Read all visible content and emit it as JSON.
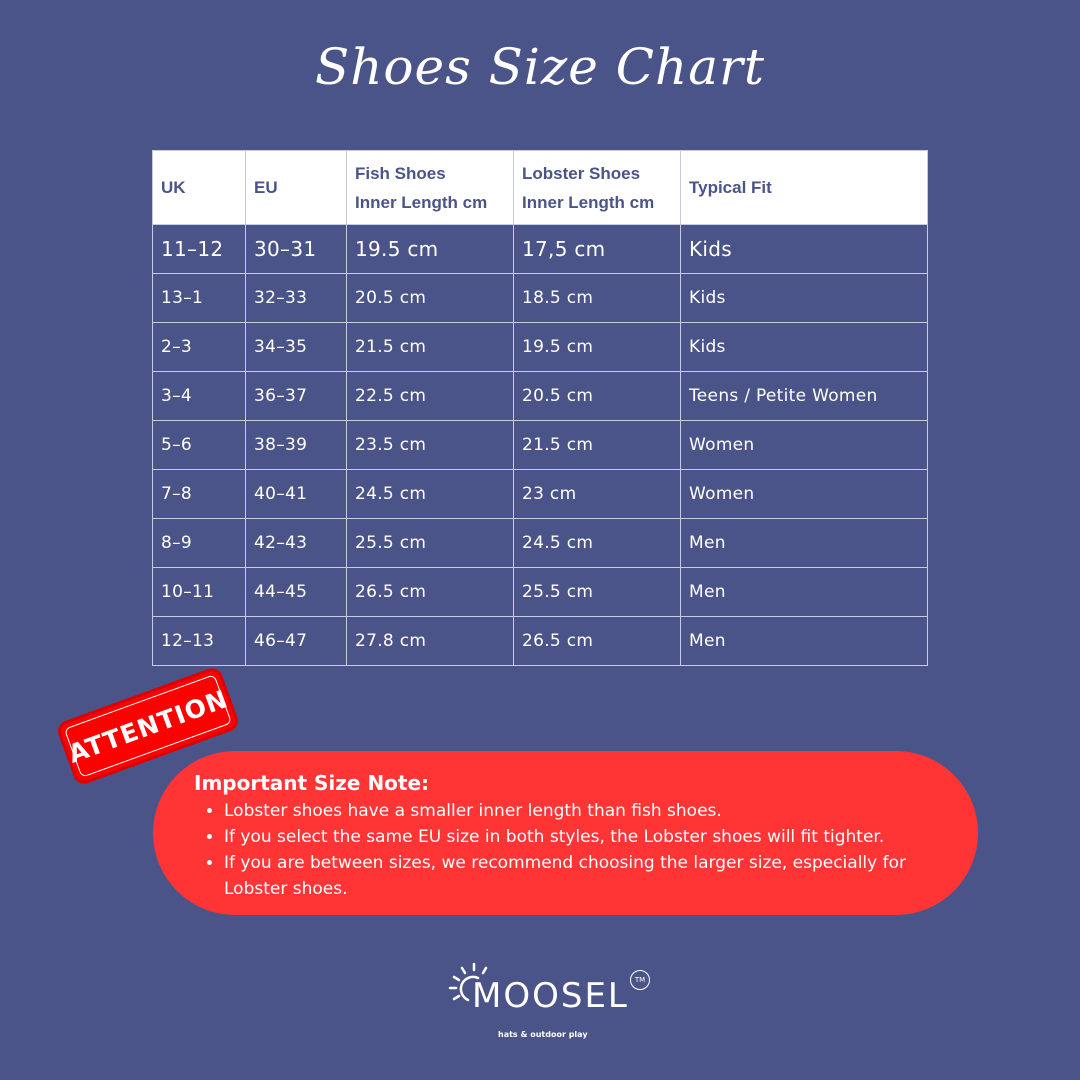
{
  "title": "Shoes Size Chart",
  "table": {
    "headers": [
      "UK",
      "EU",
      "Fish Shoes Inner Length cm",
      "Lobster Shoes Inner Length cm",
      "Typical Fit"
    ],
    "rows": [
      [
        "11–12",
        "30–31",
        "19.5 cm",
        "17,5 cm",
        "Kids"
      ],
      [
        "13–1",
        "32–33",
        "20.5 cm",
        "18.5 cm",
        "Kids"
      ],
      [
        "2–3",
        "34–35",
        "21.5 cm",
        "19.5 cm",
        "Kids"
      ],
      [
        "3–4",
        "36–37",
        "22.5 cm",
        "20.5 cm",
        "Teens / Petite Women"
      ],
      [
        "5–6",
        "38–39",
        "23.5 cm",
        "21.5 cm",
        "Women"
      ],
      [
        "7–8",
        "40–41",
        "24.5 cm",
        "23 cm",
        "Women"
      ],
      [
        "8–9",
        "42–43",
        "25.5 cm",
        "24.5 cm",
        "Men"
      ],
      [
        "10–11",
        "44–45",
        "26.5 cm",
        "25.5 cm",
        "Men"
      ],
      [
        "12–13",
        "46–47",
        "27.8 cm",
        "26.5 cm",
        "Men"
      ]
    ]
  },
  "badge": "ATTENTION",
  "note": {
    "title": "Important Size Note:",
    "items": [
      "Lobster shoes have a smaller inner length than fish shoes.",
      " If you select the same EU size in both styles, the Lobster shoes will fit tighter.",
      "If you are between sizes, we recommend choosing the larger size, especially for Lobster shoes."
    ]
  },
  "logo": {
    "name": "MOOSEL",
    "tm": "TM",
    "tagline": "hats & outdoor play"
  },
  "colors": {
    "background": "#4b5489",
    "note": "#ff3535",
    "badge": "#ff0000"
  }
}
